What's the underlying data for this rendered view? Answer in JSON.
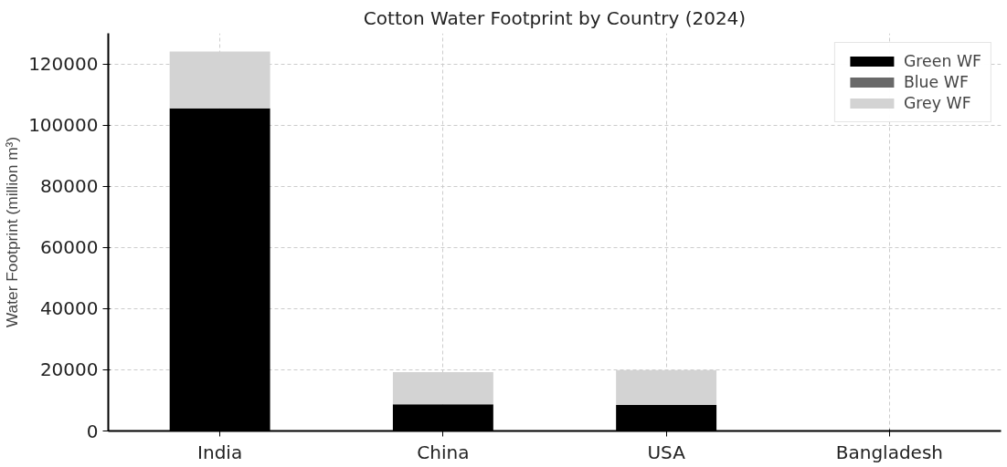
{
  "chart_data": {
    "type": "bar",
    "title": "Cotton Water Footprint by Country (2024)",
    "ylabel": "Water Footprint (million m³)",
    "categories": [
      "India",
      "China",
      "USA",
      "Bangladesh"
    ],
    "stacked": true,
    "series": [
      {
        "name": "Green WF",
        "color": "#000000",
        "values": [
          105500,
          8700,
          8500,
          0
        ]
      },
      {
        "name": "Blue WF",
        "color": "#696969",
        "values": [
          0,
          0,
          0,
          0
        ]
      },
      {
        "name": "Grey WF",
        "color": "#d3d3d3",
        "values": [
          18500,
          10500,
          11400,
          0
        ]
      }
    ],
    "ylim": [
      0,
      130000
    ],
    "yticks": [
      0,
      20000,
      40000,
      60000,
      80000,
      100000,
      120000
    ],
    "grid": true,
    "legend": "top right"
  }
}
